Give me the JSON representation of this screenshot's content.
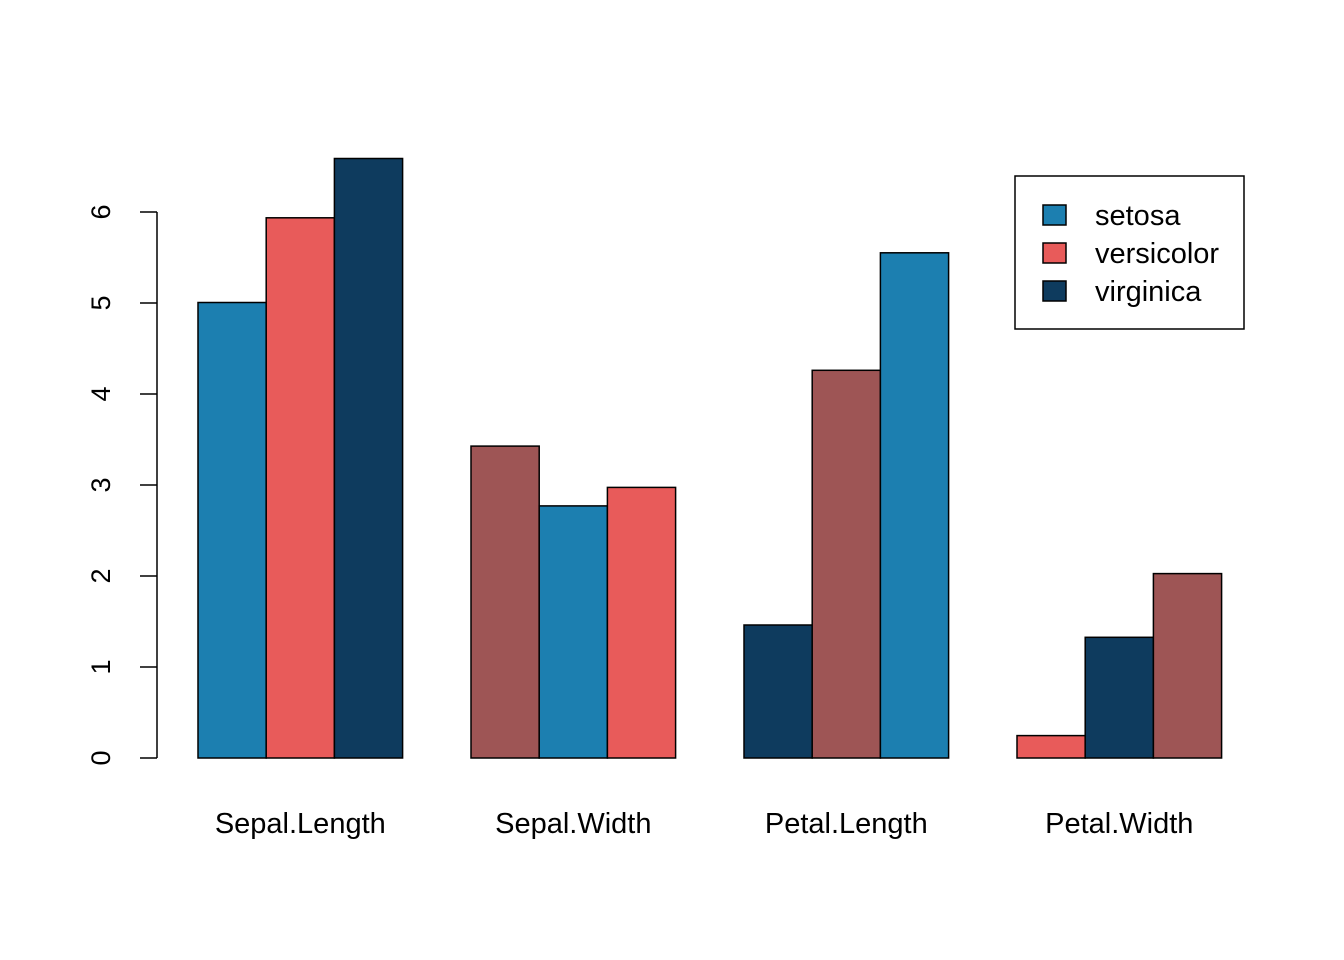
{
  "chart_data": {
    "type": "bar",
    "layout": "grouped",
    "categories": [
      "Sepal.Length",
      "Sepal.Width",
      "Petal.Length",
      "Petal.Width"
    ],
    "bars": [
      [
        {
          "value": 5.006,
          "color": "#1c7fb0"
        },
        {
          "value": 5.936,
          "color": "#e85b5a"
        },
        {
          "value": 6.588,
          "color": "#0e3b5e"
        }
      ],
      [
        {
          "value": 3.428,
          "color": "#9e5555"
        },
        {
          "value": 2.77,
          "color": "#1c7fb0"
        },
        {
          "value": 2.974,
          "color": "#e85b5a"
        }
      ],
      [
        {
          "value": 1.462,
          "color": "#0e3b5e"
        },
        {
          "value": 4.26,
          "color": "#9e5555"
        },
        {
          "value": 5.552,
          "color": "#1c7fb0"
        }
      ],
      [
        {
          "value": 0.246,
          "color": "#e85b5a"
        },
        {
          "value": 1.326,
          "color": "#0e3b5e"
        },
        {
          "value": 2.026,
          "color": "#9e5555"
        }
      ]
    ],
    "yticks": [
      0,
      1,
      2,
      3,
      4,
      5,
      6
    ],
    "ylim": [
      0,
      6.6
    ],
    "title": "",
    "xlabel": "",
    "ylabel": "",
    "grid": false,
    "legend": {
      "position": "top-right",
      "entries": [
        {
          "name": "setosa",
          "color": "#1c7fb0"
        },
        {
          "name": "versicolor",
          "color": "#e85b5a"
        },
        {
          "name": "virginica",
          "color": "#0e3b5e"
        }
      ]
    }
  }
}
